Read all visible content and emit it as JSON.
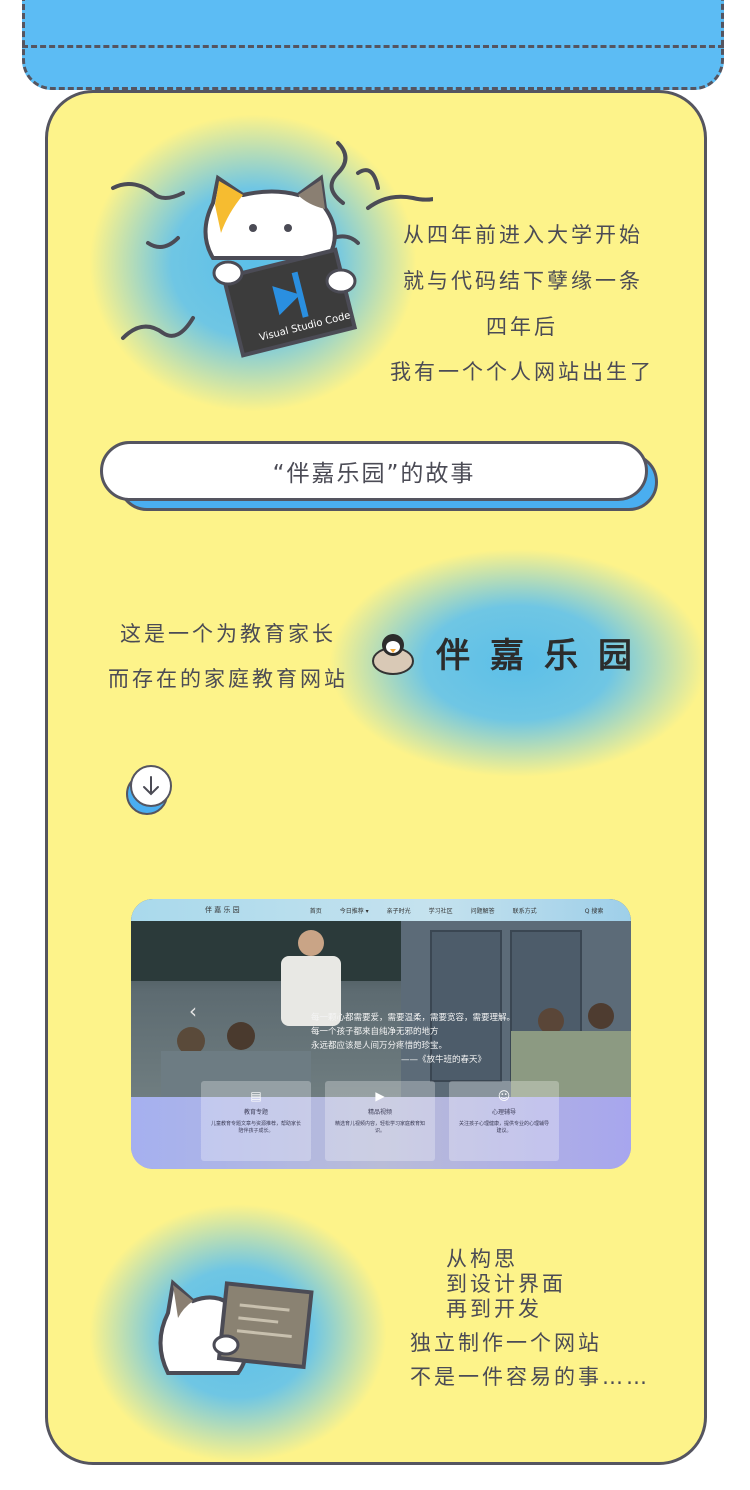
{
  "intro": {
    "lines": [
      "从四年前进入大学开始",
      "就与代码结下孽缘一条",
      "四年后",
      "我有一个个人网站出生了"
    ],
    "laptop_text": "Visual Studio Code"
  },
  "title": "“伴嘉乐园”的故事",
  "about": {
    "lines": [
      "这是一个为教育家长",
      "而存在的家庭教育网站"
    ],
    "logo_chars": [
      "伴",
      "嘉",
      "乐",
      "园"
    ]
  },
  "screenshot": {
    "brand": "伴 嘉 乐 园",
    "nav_items": [
      "首页",
      "今日推荐 ▾",
      "亲子时光",
      "学习社区",
      "问题解答",
      "联系方式"
    ],
    "search": "Q 搜索",
    "quote_lines": [
      "每一颗心都需要爱，需要温柔，需要宽容，需要理解。",
      "每一个孩子都来自纯净无邪的地方",
      "永远都应该是人间万分疼惜的珍宝。",
      "——《放牛班的春天》"
    ],
    "cards": [
      {
        "title": "教育专题",
        "desc": "儿童教育专题文章与资源推荐，帮助家长陪伴孩子成长。"
      },
      {
        "title": "精品视频",
        "desc": "精选育儿视频内容，轻松学习家庭教育知识。"
      },
      {
        "title": "心理辅导",
        "desc": "关注孩子心理健康，提供专业的心理辅导建议。"
      }
    ]
  },
  "outro": {
    "lines_a": [
      "从构思",
      "到设计界面",
      "再到开发"
    ],
    "lines_b": [
      "独立制作一个网站",
      "不是一件容易的事……"
    ]
  }
}
